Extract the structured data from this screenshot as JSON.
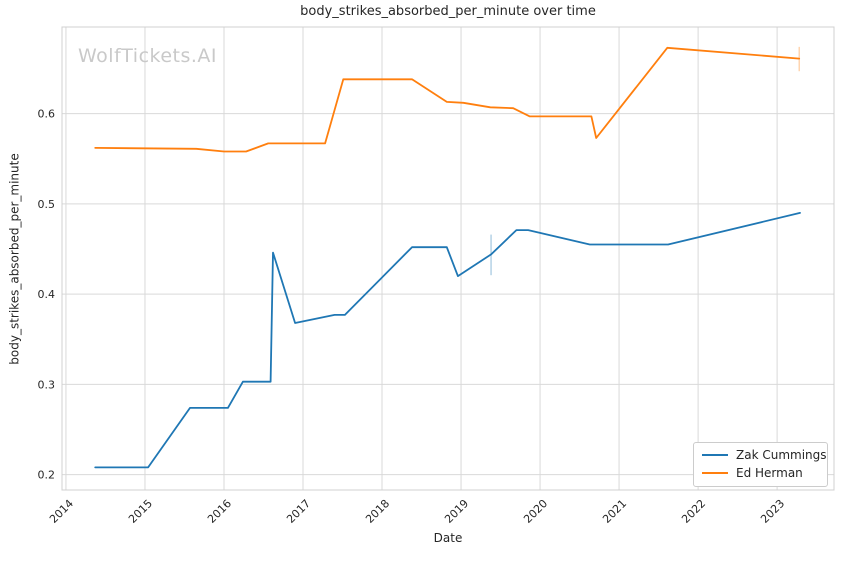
{
  "watermark": "WolfTickets.AI",
  "chart_data": {
    "type": "line",
    "title": "body_strikes_absorbed_per_minute over time",
    "xlabel": "Date",
    "ylabel": "body_strikes_absorbed_per_minute",
    "xlim": [
      2013.95,
      2023.72
    ],
    "ylim": [
      0.183,
      0.696
    ],
    "x_ticks": [
      2014,
      2015,
      2016,
      2017,
      2018,
      2019,
      2020,
      2021,
      2022,
      2023
    ],
    "y_ticks": [
      0.2,
      0.3,
      0.4,
      0.5,
      0.6
    ],
    "grid": true,
    "legend_position": "lower right",
    "series": [
      {
        "name": "Zak Cummings",
        "color": "#1f77b4",
        "points": [
          [
            2014.37,
            0.208
          ],
          [
            2015.04,
            0.208
          ],
          [
            2015.57,
            0.274
          ],
          [
            2016.05,
            0.274
          ],
          [
            2016.24,
            0.303
          ],
          [
            2016.59,
            0.303
          ],
          [
            2016.62,
            0.446
          ],
          [
            2016.9,
            0.368
          ],
          [
            2017.4,
            0.377
          ],
          [
            2017.53,
            0.377
          ],
          [
            2018.38,
            0.452
          ],
          [
            2018.82,
            0.452
          ],
          [
            2018.96,
            0.42
          ],
          [
            2019.38,
            0.444
          ],
          [
            2019.7,
            0.471
          ],
          [
            2019.85,
            0.471
          ],
          [
            2020.63,
            0.455
          ],
          [
            2021.62,
            0.455
          ],
          [
            2023.29,
            0.49
          ]
        ],
        "error_bars": [
          {
            "x": 2019.38,
            "y_low": 0.421,
            "y_high": 0.466
          }
        ]
      },
      {
        "name": "Ed Herman",
        "color": "#ff7f0e",
        "points": [
          [
            2014.37,
            0.562
          ],
          [
            2015.65,
            0.561
          ],
          [
            2016.0,
            0.558
          ],
          [
            2016.28,
            0.558
          ],
          [
            2016.56,
            0.567
          ],
          [
            2017.28,
            0.567
          ],
          [
            2017.51,
            0.638
          ],
          [
            2018.38,
            0.638
          ],
          [
            2018.82,
            0.613
          ],
          [
            2019.03,
            0.612
          ],
          [
            2019.37,
            0.607
          ],
          [
            2019.66,
            0.606
          ],
          [
            2019.87,
            0.597
          ],
          [
            2020.65,
            0.597
          ],
          [
            2020.71,
            0.573
          ],
          [
            2021.61,
            0.673
          ],
          [
            2023.28,
            0.661
          ]
        ],
        "error_bars": [
          {
            "x": 2023.28,
            "y_low": 0.647,
            "y_high": 0.674
          }
        ]
      }
    ],
    "style": {
      "grid_color": "#d9d9d9",
      "border_color": "#d0d0d0",
      "text_color": "#262626",
      "watermark_color": "#c9c9c9",
      "background": "#ffffff"
    }
  }
}
